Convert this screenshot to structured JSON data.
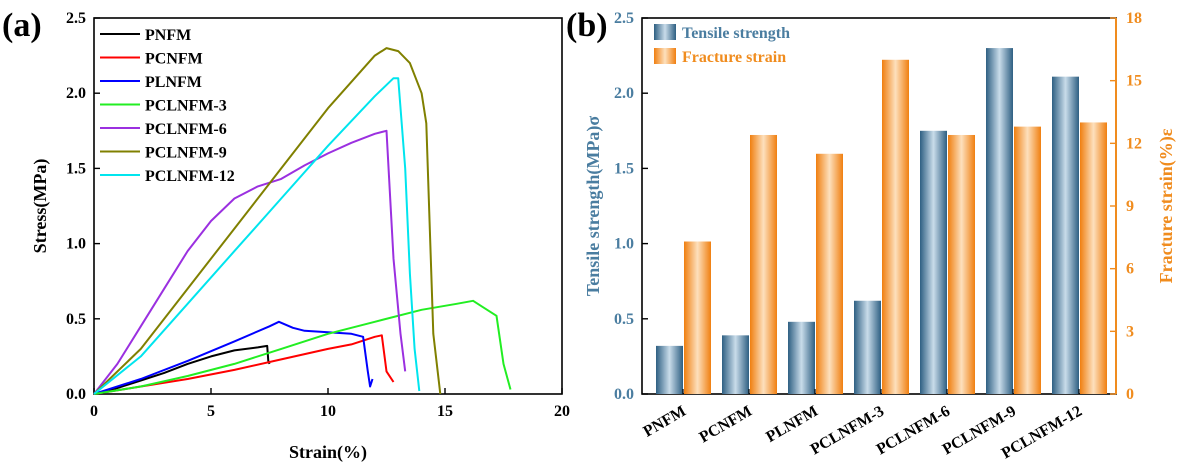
{
  "chart_data": [
    {
      "panel": "(a)",
      "type": "line",
      "xlabel": "Strain(%)",
      "ylabel": "Stress(MPa)",
      "xlim": [
        0,
        20
      ],
      "ylim": [
        0,
        2.5
      ],
      "xticks": [
        "0",
        "5",
        "10",
        "15",
        "20"
      ],
      "yticks": [
        "0.0",
        "0.5",
        "1.0",
        "1.5",
        "2.0",
        "2.5"
      ],
      "legend_position": "top-left",
      "series": [
        {
          "name": "PNFM",
          "color": "#000000",
          "x": [
            0,
            1,
            2,
            3,
            4,
            5,
            6,
            7,
            7.4,
            7.45,
            7.5
          ],
          "y": [
            0,
            0.04,
            0.09,
            0.14,
            0.2,
            0.25,
            0.29,
            0.31,
            0.32,
            0.22,
            0.2
          ]
        },
        {
          "name": "PCNFM",
          "color": "#ff0000",
          "x": [
            0,
            2,
            4,
            6,
            8,
            10,
            11,
            12,
            12.3,
            12.5,
            12.8
          ],
          "y": [
            0,
            0.05,
            0.1,
            0.16,
            0.23,
            0.3,
            0.33,
            0.38,
            0.39,
            0.15,
            0.08
          ]
        },
        {
          "name": "PLNFM",
          "color": "#0000ff",
          "x": [
            0,
            2,
            4,
            6,
            7.5,
            7.9,
            8.5,
            9,
            10,
            11,
            11.5,
            11.7,
            11.8,
            11.9
          ],
          "y": [
            0,
            0.1,
            0.22,
            0.35,
            0.45,
            0.48,
            0.44,
            0.42,
            0.41,
            0.4,
            0.38,
            0.15,
            0.05,
            0.1
          ]
        },
        {
          "name": "PCLNFM-3",
          "color": "#22ee22",
          "x": [
            0,
            2,
            4,
            6,
            8,
            10,
            12,
            14,
            15.5,
            16.2,
            16.6,
            17.2,
            17.5,
            17.8
          ],
          "y": [
            0,
            0.05,
            0.12,
            0.2,
            0.3,
            0.4,
            0.48,
            0.56,
            0.6,
            0.62,
            0.58,
            0.52,
            0.2,
            0.03
          ]
        },
        {
          "name": "PCLNFM-6",
          "color": "#9b30e0",
          "x": [
            0,
            1,
            2,
            3,
            4,
            5,
            6,
            7,
            8,
            9,
            10,
            11,
            12,
            12.5,
            12.8,
            13.1,
            13.3
          ],
          "y": [
            0,
            0.2,
            0.45,
            0.7,
            0.95,
            1.15,
            1.3,
            1.38,
            1.43,
            1.52,
            1.6,
            1.67,
            1.73,
            1.75,
            0.9,
            0.4,
            0.15
          ]
        },
        {
          "name": "PCLNFM-9",
          "color": "#808000",
          "x": [
            0,
            2,
            4,
            6,
            8,
            10,
            12,
            12.5,
            13,
            13.5,
            14,
            14.2,
            14.5,
            14.8
          ],
          "y": [
            0,
            0.3,
            0.7,
            1.1,
            1.5,
            1.9,
            2.25,
            2.3,
            2.28,
            2.2,
            2.0,
            1.8,
            0.4,
            0.0
          ]
        },
        {
          "name": "PCLNFM-12",
          "color": "#00e5ee",
          "x": [
            0,
            2,
            4,
            6,
            8,
            10,
            12,
            12.8,
            13,
            13.3,
            13.5,
            13.7,
            13.9
          ],
          "y": [
            0,
            0.25,
            0.6,
            0.95,
            1.3,
            1.65,
            1.98,
            2.1,
            2.1,
            1.5,
            0.8,
            0.3,
            0.02
          ]
        }
      ]
    },
    {
      "panel": "(b)",
      "type": "bar",
      "categories": [
        "PNFM",
        "PCNFM",
        "PLNFM",
        "PCLNFM-3",
        "PCLNFM-6",
        "PCLNFM-9",
        "PCLNFM-12"
      ],
      "ylabel_left": "Tensile strength(MPa)σ",
      "ylabel_right": "Fracture strain(%)ε",
      "ylim_left": [
        0,
        2.5
      ],
      "ylim_right": [
        0,
        18
      ],
      "yticks_left": [
        "0.0",
        "0.5",
        "1.0",
        "1.5",
        "2.0",
        "2.5"
      ],
      "yticks_right": [
        "0",
        "3",
        "6",
        "9",
        "12",
        "15",
        "18"
      ],
      "legend_position": "top-left",
      "series": [
        {
          "name": "Tensile strength",
          "axis": "left",
          "color": "#4a7da0",
          "values": [
            0.32,
            0.39,
            0.48,
            0.62,
            1.75,
            2.3,
            2.11
          ]
        },
        {
          "name": "Fracture strain",
          "axis": "right",
          "color": "#f08c1e",
          "values": [
            7.3,
            12.4,
            11.5,
            16.0,
            12.4,
            12.8,
            13.0
          ]
        }
      ]
    }
  ]
}
